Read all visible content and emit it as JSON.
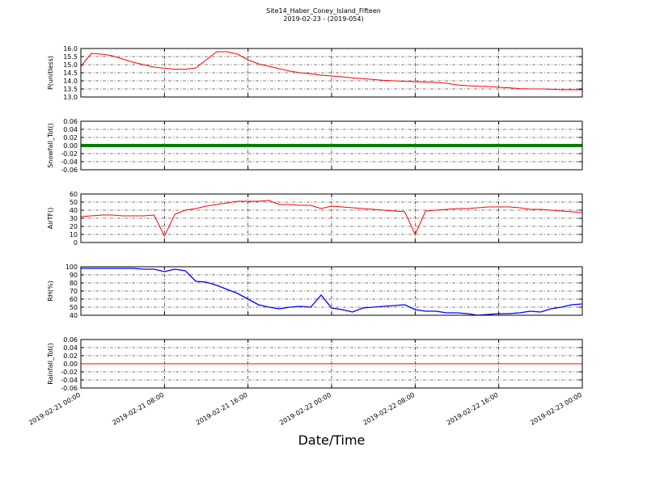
{
  "chart_data": [
    {
      "type": "line",
      "title": "Site14_Haber_Coney_Island_Fifteen",
      "subtitle": "2019-02-23 - (2019-054)",
      "ylabel": "P(unitless)",
      "color": "#ff0000",
      "line_width": 1,
      "grid": true,
      "x": [
        "2019-02-21 00:00",
        "2019-02-21 01:00",
        "2019-02-21 02:00",
        "2019-02-21 03:00",
        "2019-02-21 04:00",
        "2019-02-21 05:00",
        "2019-02-21 06:00",
        "2019-02-21 07:00",
        "2019-02-21 08:00",
        "2019-02-21 09:00",
        "2019-02-21 10:00",
        "2019-02-21 11:00",
        "2019-02-21 12:00",
        "2019-02-21 13:00",
        "2019-02-21 14:00",
        "2019-02-21 15:00",
        "2019-02-21 16:00",
        "2019-02-21 17:00",
        "2019-02-21 18:00",
        "2019-02-21 19:00",
        "2019-02-21 20:00",
        "2019-02-21 21:00",
        "2019-02-21 22:00",
        "2019-02-21 23:00",
        "2019-02-22 00:00",
        "2019-02-22 01:00",
        "2019-02-22 02:00",
        "2019-02-22 03:00",
        "2019-02-22 04:00",
        "2019-02-22 05:00",
        "2019-02-22 06:00",
        "2019-02-22 07:00",
        "2019-02-22 08:00",
        "2019-02-22 09:00",
        "2019-02-22 10:00",
        "2019-02-22 11:00",
        "2019-02-22 12:00",
        "2019-02-22 13:00",
        "2019-02-22 14:00",
        "2019-02-22 15:00",
        "2019-02-22 16:00",
        "2019-02-22 17:00",
        "2019-02-22 18:00",
        "2019-02-22 19:00",
        "2019-02-22 20:00",
        "2019-02-22 21:00",
        "2019-02-22 22:00",
        "2019-02-22 23:00",
        "2019-02-23 00:00"
      ],
      "values": [
        14.9,
        15.7,
        15.65,
        15.55,
        15.35,
        15.15,
        15.0,
        14.85,
        14.78,
        14.72,
        14.72,
        14.8,
        15.3,
        15.8,
        15.8,
        15.65,
        15.3,
        15.05,
        14.9,
        14.75,
        14.6,
        14.5,
        14.43,
        14.35,
        14.3,
        14.25,
        14.18,
        14.13,
        14.08,
        14.03,
        14.0,
        13.97,
        13.95,
        13.92,
        13.9,
        13.85,
        13.75,
        13.7,
        13.67,
        13.65,
        13.6,
        13.57,
        13.52,
        13.5,
        13.5,
        13.48,
        13.45,
        13.45,
        13.45
      ],
      "xlim": [
        "2019-02-21 00:00",
        "2019-02-23 00:00"
      ],
      "xticks": [
        "2019-02-21 00:00",
        "2019-02-21 08:00",
        "2019-02-21 16:00",
        "2019-02-22 00:00",
        "2019-02-22 08:00",
        "2019-02-22 16:00",
        "2019-02-23 00:00"
      ],
      "ylim": [
        13,
        16
      ],
      "yticks": [
        {
          "value": 13,
          "label": "13.0"
        },
        13.5,
        {
          "value": 14,
          "label": "14.0"
        },
        14.5,
        {
          "value": 15,
          "label": "15.0"
        },
        15.5,
        {
          "value": 16,
          "label": "16.0"
        }
      ]
    },
    {
      "type": "line",
      "ylabel": "Snowfall_Tot()",
      "color": "#008000",
      "line_width": 4,
      "grid": true,
      "x": [
        "2019-02-21 00:00",
        "2019-02-21 01:00",
        "2019-02-21 02:00",
        "2019-02-21 03:00",
        "2019-02-21 04:00",
        "2019-02-21 05:00",
        "2019-02-21 06:00",
        "2019-02-21 07:00",
        "2019-02-21 08:00",
        "2019-02-21 09:00",
        "2019-02-21 10:00",
        "2019-02-21 11:00",
        "2019-02-21 12:00",
        "2019-02-21 13:00",
        "2019-02-21 14:00",
        "2019-02-21 15:00",
        "2019-02-21 16:00",
        "2019-02-21 17:00",
        "2019-02-21 18:00",
        "2019-02-21 19:00",
        "2019-02-21 20:00",
        "2019-02-21 21:00",
        "2019-02-21 22:00",
        "2019-02-21 23:00",
        "2019-02-22 00:00",
        "2019-02-22 01:00",
        "2019-02-22 02:00",
        "2019-02-22 03:00",
        "2019-02-22 04:00",
        "2019-02-22 05:00",
        "2019-02-22 06:00",
        "2019-02-22 07:00",
        "2019-02-22 08:00",
        "2019-02-22 09:00",
        "2019-02-22 10:00",
        "2019-02-22 11:00",
        "2019-02-22 12:00",
        "2019-02-22 13:00",
        "2019-02-22 14:00",
        "2019-02-22 15:00",
        "2019-02-22 16:00",
        "2019-02-22 17:00",
        "2019-02-22 18:00",
        "2019-02-22 19:00",
        "2019-02-22 20:00",
        "2019-02-22 21:00",
        "2019-02-22 22:00",
        "2019-02-22 23:00",
        "2019-02-23 00:00"
      ],
      "values": [
        0,
        0,
        0,
        0,
        0,
        0,
        0,
        0,
        0,
        0,
        0,
        0,
        0,
        0,
        0,
        0,
        0,
        0,
        0,
        0,
        0,
        0,
        0,
        0,
        0,
        0,
        0,
        0,
        0,
        0,
        0,
        0,
        0,
        0,
        0,
        0,
        0,
        0,
        0,
        0,
        0,
        0,
        0,
        0,
        0,
        0,
        0,
        0,
        0
      ],
      "xlim": [
        "2019-02-21 00:00",
        "2019-02-23 00:00"
      ],
      "xticks": [
        "2019-02-21 00:00",
        "2019-02-21 08:00",
        "2019-02-21 16:00",
        "2019-02-22 00:00",
        "2019-02-22 08:00",
        "2019-02-22 16:00",
        "2019-02-23 00:00"
      ],
      "ylim": [
        -0.06,
        0.06
      ],
      "yticks": [
        -0.06,
        -0.04,
        -0.02,
        {
          "value": 0,
          "label": "0.00"
        },
        0.02,
        0.04,
        0.06
      ]
    },
    {
      "type": "line",
      "ylabel": "AirTF()",
      "color": "#ff0000",
      "line_width": 1,
      "grid": true,
      "x": [
        "2019-02-21 00:00",
        "2019-02-21 01:00",
        "2019-02-21 02:00",
        "2019-02-21 03:00",
        "2019-02-21 04:00",
        "2019-02-21 05:00",
        "2019-02-21 06:00",
        "2019-02-21 07:00",
        "2019-02-21 08:00",
        "2019-02-21 09:00",
        "2019-02-21 10:00",
        "2019-02-21 11:00",
        "2019-02-21 12:00",
        "2019-02-21 13:00",
        "2019-02-21 14:00",
        "2019-02-21 15:00",
        "2019-02-21 16:00",
        "2019-02-21 17:00",
        "2019-02-21 18:00",
        "2019-02-21 19:00",
        "2019-02-21 20:00",
        "2019-02-21 21:00",
        "2019-02-21 22:00",
        "2019-02-21 23:00",
        "2019-02-22 00:00",
        "2019-02-22 01:00",
        "2019-02-22 02:00",
        "2019-02-22 03:00",
        "2019-02-22 04:00",
        "2019-02-22 05:00",
        "2019-02-22 06:00",
        "2019-02-22 07:00",
        "2019-02-22 08:00",
        "2019-02-22 09:00",
        "2019-02-22 10:00",
        "2019-02-22 11:00",
        "2019-02-22 12:00",
        "2019-02-22 13:00",
        "2019-02-22 14:00",
        "2019-02-22 15:00",
        "2019-02-22 16:00",
        "2019-02-22 17:00",
        "2019-02-22 18:00",
        "2019-02-22 19:00",
        "2019-02-22 20:00",
        "2019-02-22 21:00",
        "2019-02-22 22:00",
        "2019-02-22 23:00",
        "2019-02-23 00:00"
      ],
      "values": [
        32,
        33,
        34,
        34,
        33,
        33,
        33,
        34,
        8,
        35,
        40,
        42,
        45,
        47,
        49,
        51,
        51,
        51,
        52,
        47,
        47,
        46,
        46,
        42,
        45,
        44,
        43,
        42,
        41,
        40,
        39,
        38,
        10,
        39,
        40,
        41,
        42,
        42,
        43,
        44,
        44,
        44,
        43,
        41,
        41,
        40,
        39,
        38,
        37
      ],
      "xlim": [
        "2019-02-21 00:00",
        "2019-02-23 00:00"
      ],
      "xticks": [
        "2019-02-21 00:00",
        "2019-02-21 08:00",
        "2019-02-21 16:00",
        "2019-02-22 00:00",
        "2019-02-22 08:00",
        "2019-02-22 16:00",
        "2019-02-23 00:00"
      ],
      "ylim": [
        0,
        60
      ],
      "yticks": [
        0,
        10,
        20,
        30,
        40,
        50,
        60
      ]
    },
    {
      "type": "line",
      "ylabel": "RH(%)",
      "color": "#0000ff",
      "line_width": 1.3,
      "grid": true,
      "x": [
        "2019-02-21 00:00",
        "2019-02-21 01:00",
        "2019-02-21 02:00",
        "2019-02-21 03:00",
        "2019-02-21 04:00",
        "2019-02-21 05:00",
        "2019-02-21 06:00",
        "2019-02-21 07:00",
        "2019-02-21 08:00",
        "2019-02-21 09:00",
        "2019-02-21 10:00",
        "2019-02-21 11:00",
        "2019-02-21 12:00",
        "2019-02-21 13:00",
        "2019-02-21 14:00",
        "2019-02-21 15:00",
        "2019-02-21 16:00",
        "2019-02-21 17:00",
        "2019-02-21 18:00",
        "2019-02-21 19:00",
        "2019-02-21 20:00",
        "2019-02-21 21:00",
        "2019-02-21 22:00",
        "2019-02-21 23:00",
        "2019-02-22 00:00",
        "2019-02-22 01:00",
        "2019-02-22 02:00",
        "2019-02-22 03:00",
        "2019-02-22 04:00",
        "2019-02-22 05:00",
        "2019-02-22 06:00",
        "2019-02-22 07:00",
        "2019-02-22 08:00",
        "2019-02-22 09:00",
        "2019-02-22 10:00",
        "2019-02-22 11:00",
        "2019-02-22 12:00",
        "2019-02-22 13:00",
        "2019-02-22 14:00",
        "2019-02-22 15:00",
        "2019-02-22 16:00",
        "2019-02-22 17:00",
        "2019-02-22 18:00",
        "2019-02-22 19:00",
        "2019-02-22 20:00",
        "2019-02-22 21:00",
        "2019-02-22 22:00",
        "2019-02-22 23:00",
        "2019-02-23 00:00"
      ],
      "values": [
        98,
        98,
        98,
        98,
        98,
        98,
        97,
        97,
        94,
        97,
        95,
        82,
        81,
        77,
        72,
        67,
        60,
        53,
        50,
        48,
        50,
        51,
        50,
        65,
        49,
        47,
        44,
        49,
        50,
        51,
        52,
        53,
        47,
        45,
        45,
        43,
        43,
        42,
        40,
        41,
        42,
        42,
        43,
        45,
        44,
        48,
        50,
        53,
        54
      ],
      "xlim": [
        "2019-02-21 00:00",
        "2019-02-23 00:00"
      ],
      "xticks": [
        "2019-02-21 00:00",
        "2019-02-21 08:00",
        "2019-02-21 16:00",
        "2019-02-22 00:00",
        "2019-02-22 08:00",
        "2019-02-22 16:00",
        "2019-02-23 00:00"
      ],
      "ylim": [
        40,
        100
      ],
      "yticks": [
        40,
        50,
        60,
        70,
        80,
        90,
        100
      ]
    },
    {
      "type": "line",
      "ylabel": "Rainfall_Tot()",
      "xlabel": "Date/Time",
      "color": "#ff0000",
      "line_width": 1,
      "grid": true,
      "x": [
        "2019-02-21 00:00",
        "2019-02-21 01:00",
        "2019-02-21 02:00",
        "2019-02-21 03:00",
        "2019-02-21 04:00",
        "2019-02-21 05:00",
        "2019-02-21 06:00",
        "2019-02-21 07:00",
        "2019-02-21 08:00",
        "2019-02-21 09:00",
        "2019-02-21 10:00",
        "2019-02-21 11:00",
        "2019-02-21 12:00",
        "2019-02-21 13:00",
        "2019-02-21 14:00",
        "2019-02-21 15:00",
        "2019-02-21 16:00",
        "2019-02-21 17:00",
        "2019-02-21 18:00",
        "2019-02-21 19:00",
        "2019-02-21 20:00",
        "2019-02-21 21:00",
        "2019-02-21 22:00",
        "2019-02-21 23:00",
        "2019-02-22 00:00",
        "2019-02-22 01:00",
        "2019-02-22 02:00",
        "2019-02-22 03:00",
        "2019-02-22 04:00",
        "2019-02-22 05:00",
        "2019-02-22 06:00",
        "2019-02-22 07:00",
        "2019-02-22 08:00",
        "2019-02-22 09:00",
        "2019-02-22 10:00",
        "2019-02-22 11:00",
        "2019-02-22 12:00",
        "2019-02-22 13:00",
        "2019-02-22 14:00",
        "2019-02-22 15:00",
        "2019-02-22 16:00",
        "2019-02-22 17:00",
        "2019-02-22 18:00",
        "2019-02-22 19:00",
        "2019-02-22 20:00",
        "2019-02-22 21:00",
        "2019-02-22 22:00",
        "2019-02-22 23:00",
        "2019-02-23 00:00"
      ],
      "values": [
        0,
        0,
        0,
        0,
        0,
        0,
        0,
        0,
        0,
        0,
        0,
        0,
        0,
        0,
        0,
        0,
        0,
        0,
        0,
        0,
        0,
        0,
        0,
        0,
        0,
        0,
        0,
        0,
        0,
        0,
        0,
        0,
        0,
        0,
        0,
        0,
        0,
        0,
        0,
        0,
        0,
        0,
        0,
        0,
        0,
        0,
        0,
        0,
        0
      ],
      "xlim": [
        "2019-02-21 00:00",
        "2019-02-23 00:00"
      ],
      "xticks": [
        "2019-02-21 00:00",
        "2019-02-21 08:00",
        "2019-02-21 16:00",
        "2019-02-22 00:00",
        "2019-02-22 08:00",
        "2019-02-22 16:00",
        "2019-02-23 00:00"
      ],
      "ylim": [
        -0.06,
        0.06
      ],
      "yticks": [
        -0.06,
        -0.04,
        -0.02,
        {
          "value": 0,
          "label": "0.00"
        },
        0.02,
        0.04,
        0.06
      ]
    }
  ]
}
